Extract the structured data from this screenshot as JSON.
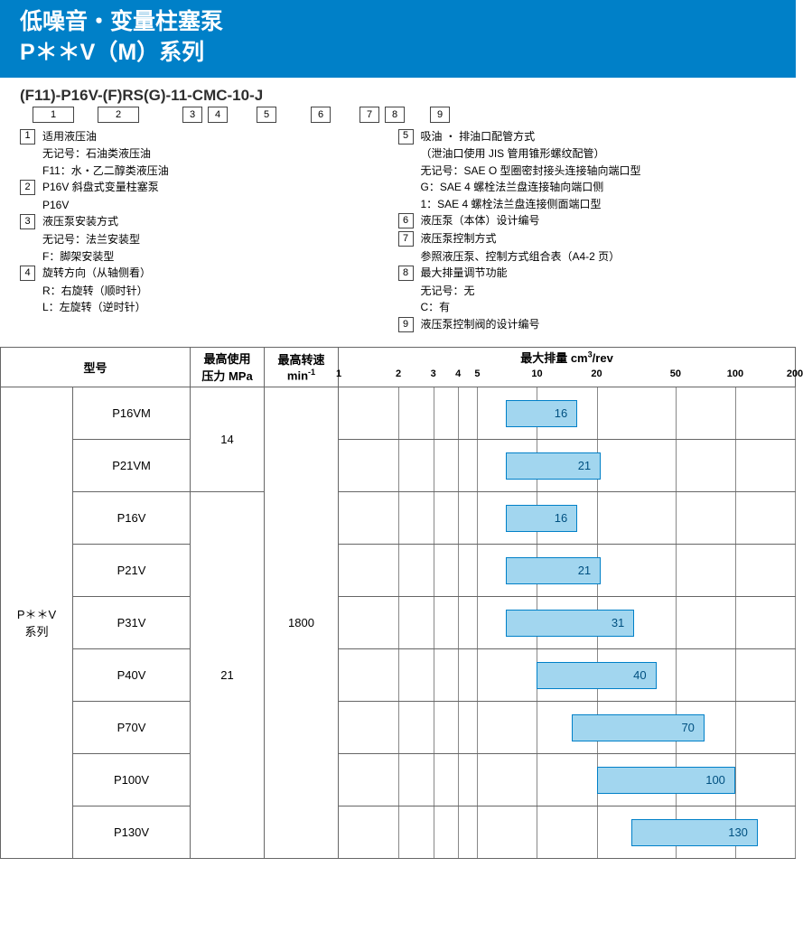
{
  "header": {
    "line1": "低噪音・变量柱塞泵",
    "line2": "P＊＊V（M）系列"
  },
  "model_code": "(F11)-P16V-(F)RS(G)-11-CMC-10-J",
  "code_index_boxes": {
    "wide": [
      "1",
      "2"
    ],
    "small": [
      "3",
      "4",
      "5",
      "6",
      "7",
      "8",
      "9"
    ],
    "gaps_after": {
      "0": 14,
      "1": 36,
      "2": 0,
      "3": 20,
      "4": 26,
      "5": 20,
      "6": 0,
      "7": 16
    }
  },
  "spec_left": [
    {
      "idx": "1",
      "title": "适用液压油",
      "subs": [
        "无记号：石油类液压油",
        "F11：水・乙二醇类液压油"
      ]
    },
    {
      "idx": "2",
      "title": "P16V 斜盘式变量柱塞泵",
      "subs": [
        "P16V"
      ]
    },
    {
      "idx": "3",
      "title": "液压泵安装方式",
      "subs": [
        "无记号：法兰安装型",
        "F：脚架安装型"
      ]
    },
    {
      "idx": "4",
      "title": "旋转方向（从轴侧看）",
      "subs": [
        "R：右旋转（顺时针）",
        "L：左旋转（逆时针）"
      ]
    }
  ],
  "spec_right": [
    {
      "idx": "5",
      "title": "吸油 ・ 排油口配管方式",
      "subs": [
        "（泄油口使用 JIS 管用锥形螺纹配管）",
        "无记号：SAE O 型圈密封接头连接轴向端口型",
        "G：SAE 4 螺栓法兰盘连接轴向端口侧",
        "1：SAE 4 螺栓法兰盘连接侧面端口型"
      ]
    },
    {
      "idx": "6",
      "title": "液压泵（本体）设计编号",
      "subs": []
    },
    {
      "idx": "7",
      "title": "液压泵控制方式",
      "subs": [
        "参照液压泵、控制方式组合表（A4-2 页）"
      ]
    },
    {
      "idx": "8",
      "title": "最大排量调节功能",
      "subs": [
        "无记号：无",
        "C：有"
      ]
    },
    {
      "idx": "9",
      "title": "液压泵控制阀的设计编号",
      "subs": []
    }
  ],
  "table": {
    "headers": {
      "model": "型号",
      "pressure": "最高使用\n压力 MPa",
      "speed": "最高转速\nmin⁻¹",
      "chart": "最大排量 cm³/rev"
    },
    "series_label": "P＊＊V\n系列",
    "pressure_groups": [
      {
        "value": "14",
        "rows": 2
      },
      {
        "value": "21",
        "rows": 7
      }
    ],
    "speed": "1800",
    "axis": {
      "log_min": 1,
      "log_max": 200,
      "ticks": [
        1,
        2,
        3,
        4,
        5,
        10,
        20,
        50,
        100,
        200
      ]
    },
    "rows": [
      {
        "model": "P16VM",
        "bar_from": 7,
        "bar_to": 16,
        "label": "16"
      },
      {
        "model": "P21VM",
        "bar_from": 7,
        "bar_to": 21,
        "label": "21"
      },
      {
        "model": "P16V",
        "bar_from": 7,
        "bar_to": 16,
        "label": "16"
      },
      {
        "model": "P21V",
        "bar_from": 7,
        "bar_to": 21,
        "label": "21"
      },
      {
        "model": "P31V",
        "bar_from": 7,
        "bar_to": 31,
        "label": "31"
      },
      {
        "model": "P40V",
        "bar_from": 10,
        "bar_to": 40,
        "label": "40"
      },
      {
        "model": "P70V",
        "bar_from": 15,
        "bar_to": 70,
        "label": "70"
      },
      {
        "model": "P100V",
        "bar_from": 20,
        "bar_to": 100,
        "label": "100"
      },
      {
        "model": "P130V",
        "bar_from": 30,
        "bar_to": 130,
        "label": "130"
      }
    ],
    "colors": {
      "bar_fill": "#a2d6ef",
      "bar_border": "#0080c8",
      "header_bg": "#0080c8",
      "grid": "#888888"
    }
  }
}
